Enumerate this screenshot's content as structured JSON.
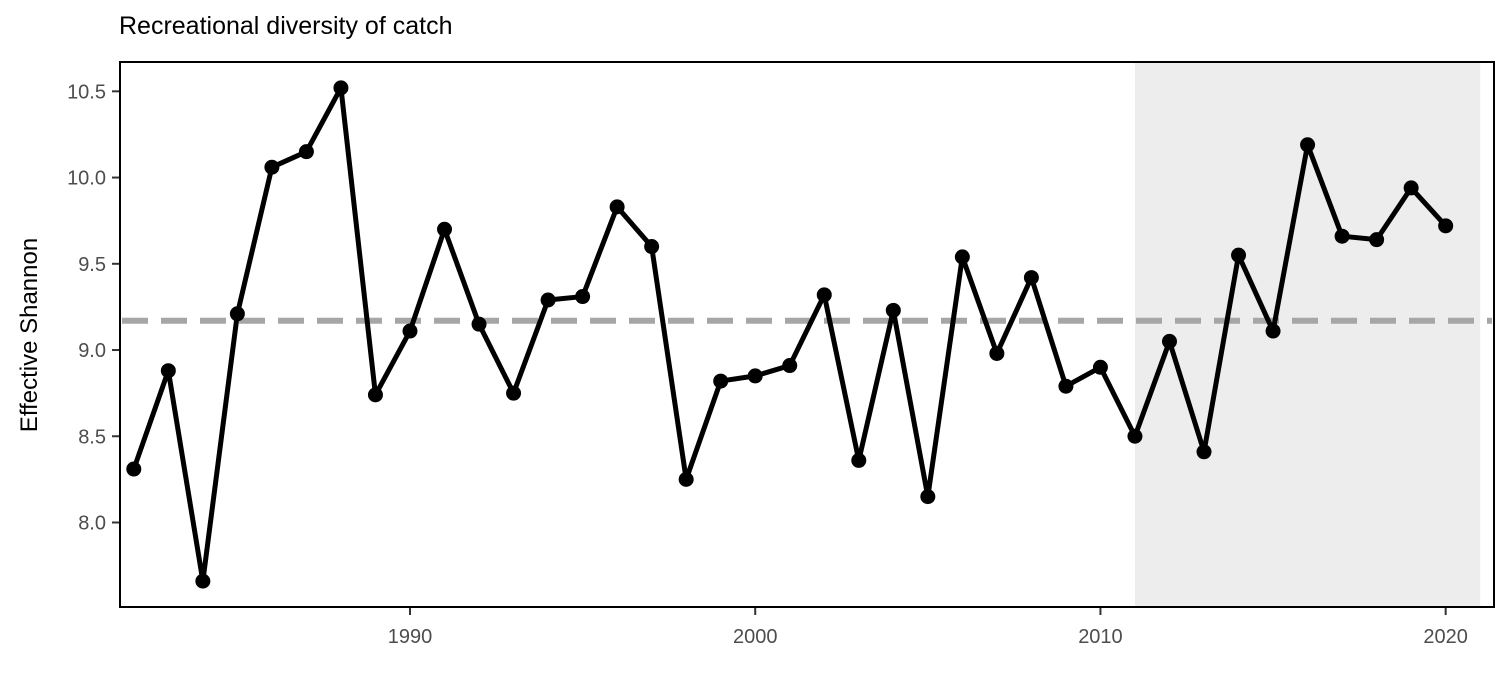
{
  "chart_data": {
    "type": "line",
    "title": "Recreational diversity of catch",
    "xlabel": "",
    "ylabel": "Effective Shannon",
    "xlim": [
      1981.6,
      2021.4
    ],
    "ylim": [
      7.51,
      10.67
    ],
    "x_ticks": [
      1990,
      2000,
      2010,
      2020
    ],
    "y_ticks": [
      8.0,
      8.5,
      9.0,
      9.5,
      10.0,
      10.5
    ],
    "x_tick_labels": [
      "1990",
      "2000",
      "2010",
      "2020"
    ],
    "y_tick_labels": [
      "8.0",
      "8.5",
      "9.0",
      "9.5",
      "10.0",
      "10.5"
    ],
    "grid": false,
    "reference_line": {
      "y": 9.17,
      "style": "dashed",
      "color": "#a6a6a6"
    },
    "shaded_region": {
      "x_start": 2011,
      "x_end": 2021,
      "color": "#ededed"
    },
    "series_color": "#000000",
    "series": [
      {
        "x": [
          1982,
          1983,
          1984,
          1985,
          1986,
          1987,
          1988,
          1989,
          1990,
          1991,
          1992,
          1993,
          1994,
          1995,
          1996,
          1997,
          1998,
          1999,
          2000,
          2001,
          2002,
          2003,
          2004,
          2005,
          2006,
          2007,
          2008,
          2009,
          2010,
          2011,
          2012,
          2013,
          2014,
          2015,
          2016,
          2017,
          2018,
          2019,
          2020
        ],
        "values": [
          8.31,
          8.88,
          7.66,
          9.21,
          10.06,
          10.15,
          10.52,
          8.74,
          9.11,
          9.7,
          9.15,
          8.75,
          9.29,
          9.31,
          9.83,
          9.6,
          8.25,
          8.82,
          8.85,
          8.91,
          9.32,
          8.36,
          9.23,
          8.15,
          9.54,
          8.98,
          9.42,
          8.79,
          8.9,
          8.5,
          9.05,
          8.41,
          9.55,
          9.11,
          10.19,
          9.66,
          9.64,
          9.94,
          9.72
        ]
      }
    ]
  }
}
